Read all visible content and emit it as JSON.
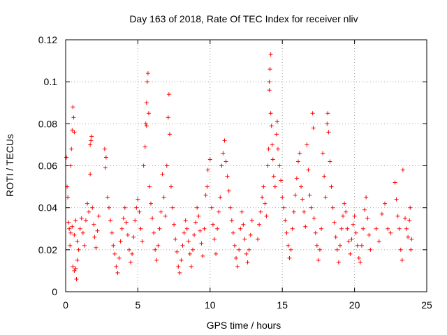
{
  "chart_data": {
    "type": "scatter",
    "title": "Day 163 of 2018, Rate Of TEC Index for receiver nliv",
    "xlabel": "GPS time / hours",
    "ylabel": "ROTI / TECUs",
    "xlim": [
      0,
      25
    ],
    "ylim": [
      0,
      0.12
    ],
    "xticks": [
      0,
      5,
      10,
      15,
      20,
      25
    ],
    "xtick_labels": [
      "0",
      "5",
      "10",
      "15",
      "20",
      "25"
    ],
    "yticks": [
      0,
      0.02,
      0.04,
      0.06,
      0.08,
      0.1,
      0.12
    ],
    "ytick_labels": [
      "0",
      "0.02",
      "0.04",
      "0.06",
      "0.08",
      "0.1",
      "0.12"
    ],
    "grid": true,
    "marker": "plus",
    "color": "#ff0000",
    "series": [
      {
        "name": "ROTI",
        "points": [
          [
            0.05,
            0.064
          ],
          [
            0.1,
            0.05
          ],
          [
            0.15,
            0.045
          ],
          [
            0.2,
            0.033
          ],
          [
            0.25,
            0.03
          ],
          [
            0.3,
            0.022
          ],
          [
            0.35,
            0.06
          ],
          [
            0.4,
            0.068
          ],
          [
            0.45,
            0.077
          ],
          [
            0.5,
            0.088
          ],
          [
            0.55,
            0.083
          ],
          [
            0.6,
            0.076
          ],
          [
            0.5,
            0.012
          ],
          [
            0.6,
            0.01
          ],
          [
            0.7,
            0.011
          ],
          [
            0.75,
            0.006
          ],
          [
            0.8,
            0.015
          ],
          [
            0.35,
            0.028
          ],
          [
            0.45,
            0.031
          ],
          [
            0.6,
            0.027
          ],
          [
            0.7,
            0.034
          ],
          [
            0.8,
            0.024
          ],
          [
            0.9,
            0.02
          ],
          [
            1.0,
            0.03
          ],
          [
            1.1,
            0.035
          ],
          [
            1.2,
            0.028
          ],
          [
            1.3,
            0.022
          ],
          [
            1.4,
            0.034
          ],
          [
            1.5,
            0.042
          ],
          [
            1.6,
            0.038
          ],
          [
            1.7,
            0.07
          ],
          [
            1.75,
            0.072
          ],
          [
            1.8,
            0.074
          ],
          [
            1.7,
            0.056
          ],
          [
            1.85,
            0.04
          ],
          [
            1.95,
            0.032
          ],
          [
            2.0,
            0.026
          ],
          [
            2.1,
            0.021
          ],
          [
            2.2,
            0.029
          ],
          [
            2.3,
            0.036
          ],
          [
            2.7,
            0.068
          ],
          [
            2.8,
            0.064
          ],
          [
            2.75,
            0.059
          ],
          [
            2.9,
            0.045
          ],
          [
            3.0,
            0.04
          ],
          [
            3.1,
            0.034
          ],
          [
            3.2,
            0.028
          ],
          [
            3.3,
            0.022
          ],
          [
            3.4,
            0.018
          ],
          [
            3.5,
            0.012
          ],
          [
            3.6,
            0.009
          ],
          [
            3.7,
            0.016
          ],
          [
            3.8,
            0.024
          ],
          [
            3.9,
            0.03
          ],
          [
            4.0,
            0.035
          ],
          [
            4.1,
            0.04
          ],
          [
            4.2,
            0.033
          ],
          [
            4.3,
            0.027
          ],
          [
            4.4,
            0.02
          ],
          [
            4.5,
            0.014
          ],
          [
            4.6,
            0.018
          ],
          [
            4.7,
            0.026
          ],
          [
            4.8,
            0.034
          ],
          [
            4.9,
            0.04
          ],
          [
            5.0,
            0.044
          ],
          [
            5.1,
            0.038
          ],
          [
            5.2,
            0.03
          ],
          [
            5.3,
            0.024
          ],
          [
            5.4,
            0.06
          ],
          [
            5.5,
            0.069
          ],
          [
            5.55,
            0.08
          ],
          [
            5.6,
            0.09
          ],
          [
            5.65,
            0.1
          ],
          [
            5.7,
            0.104
          ],
          [
            5.6,
            0.079
          ],
          [
            5.75,
            0.085
          ],
          [
            5.8,
            0.05
          ],
          [
            5.9,
            0.042
          ],
          [
            6.0,
            0.035
          ],
          [
            6.1,
            0.028
          ],
          [
            6.2,
            0.02
          ],
          [
            6.3,
            0.015
          ],
          [
            6.4,
            0.022
          ],
          [
            6.5,
            0.03
          ],
          [
            6.6,
            0.038
          ],
          [
            6.7,
            0.056
          ],
          [
            6.8,
            0.045
          ],
          [
            6.9,
            0.036
          ],
          [
            7.0,
            0.06
          ],
          [
            7.1,
            0.083
          ],
          [
            7.15,
            0.094
          ],
          [
            7.2,
            0.075
          ],
          [
            7.3,
            0.05
          ],
          [
            7.4,
            0.04
          ],
          [
            7.5,
            0.032
          ],
          [
            7.6,
            0.025
          ],
          [
            7.7,
            0.019
          ],
          [
            7.8,
            0.012
          ],
          [
            7.9,
            0.009
          ],
          [
            8.0,
            0.015
          ],
          [
            8.1,
            0.022
          ],
          [
            8.2,
            0.028
          ],
          [
            8.3,
            0.034
          ],
          [
            8.4,
            0.03
          ],
          [
            8.5,
            0.024
          ],
          [
            8.6,
            0.018
          ],
          [
            8.7,
            0.012
          ],
          [
            8.8,
            0.02
          ],
          [
            8.9,
            0.027
          ],
          [
            9.0,
            0.033
          ],
          [
            9.1,
            0.04
          ],
          [
            9.2,
            0.036
          ],
          [
            9.3,
            0.029
          ],
          [
            9.4,
            0.023
          ],
          [
            9.5,
            0.017
          ],
          [
            9.6,
            0.03
          ],
          [
            9.7,
            0.046
          ],
          [
            9.8,
            0.05
          ],
          [
            9.85,
            0.058
          ],
          [
            10.0,
            0.063
          ],
          [
            10.1,
            0.04
          ],
          [
            10.2,
            0.032
          ],
          [
            10.3,
            0.025
          ],
          [
            10.4,
            0.018
          ],
          [
            10.5,
            0.03
          ],
          [
            10.6,
            0.038
          ],
          [
            10.7,
            0.045
          ],
          [
            10.8,
            0.06
          ],
          [
            10.9,
            0.066
          ],
          [
            11.0,
            0.072
          ],
          [
            11.1,
            0.062
          ],
          [
            11.2,
            0.055
          ],
          [
            11.3,
            0.048
          ],
          [
            11.4,
            0.04
          ],
          [
            11.5,
            0.034
          ],
          [
            11.6,
            0.028
          ],
          [
            11.7,
            0.022
          ],
          [
            11.8,
            0.016
          ],
          [
            11.9,
            0.012
          ],
          [
            12.0,
            0.02
          ],
          [
            12.1,
            0.03
          ],
          [
            12.2,
            0.038
          ],
          [
            12.3,
            0.032
          ],
          [
            12.4,
            0.025
          ],
          [
            12.5,
            0.018
          ],
          [
            12.6,
            0.014
          ],
          [
            12.7,
            0.02
          ],
          [
            12.8,
            0.027
          ],
          [
            12.9,
            0.034
          ],
          [
            13.3,
            0.025
          ],
          [
            13.4,
            0.032
          ],
          [
            13.5,
            0.038
          ],
          [
            13.6,
            0.045
          ],
          [
            13.7,
            0.05
          ],
          [
            13.8,
            0.042
          ],
          [
            13.9,
            0.036
          ],
          [
            14.0,
            0.06
          ],
          [
            14.05,
            0.068
          ],
          [
            14.1,
            0.1
          ],
          [
            14.15,
            0.106
          ],
          [
            14.2,
            0.113
          ],
          [
            14.1,
            0.096
          ],
          [
            14.2,
            0.085
          ],
          [
            14.25,
            0.079
          ],
          [
            14.3,
            0.07
          ],
          [
            14.35,
            0.063
          ],
          [
            14.4,
            0.055
          ],
          [
            14.5,
            0.05
          ],
          [
            14.6,
            0.075
          ],
          [
            14.65,
            0.081
          ],
          [
            14.7,
            0.068
          ],
          [
            14.8,
            0.06
          ],
          [
            14.9,
            0.053
          ],
          [
            15.0,
            0.045
          ],
          [
            15.1,
            0.04
          ],
          [
            15.2,
            0.034
          ],
          [
            15.3,
            0.028
          ],
          [
            15.4,
            0.022
          ],
          [
            15.5,
            0.016
          ],
          [
            15.6,
            0.02
          ],
          [
            15.7,
            0.03
          ],
          [
            15.8,
            0.038
          ],
          [
            15.9,
            0.046
          ],
          [
            16.0,
            0.054
          ],
          [
            16.1,
            0.062
          ],
          [
            16.2,
            0.066
          ],
          [
            16.3,
            0.05
          ],
          [
            16.4,
            0.044
          ],
          [
            16.5,
            0.038
          ],
          [
            16.6,
            0.031
          ],
          [
            16.7,
            0.07
          ],
          [
            16.8,
            0.058
          ],
          [
            16.9,
            0.046
          ],
          [
            17.0,
            0.04
          ],
          [
            17.1,
            0.085
          ],
          [
            17.15,
            0.078
          ],
          [
            17.2,
            0.035
          ],
          [
            17.3,
            0.028
          ],
          [
            17.4,
            0.022
          ],
          [
            17.5,
            0.015
          ],
          [
            17.6,
            0.02
          ],
          [
            17.7,
            0.03
          ],
          [
            17.8,
            0.066
          ],
          [
            17.9,
            0.055
          ],
          [
            18.0,
            0.045
          ],
          [
            18.1,
            0.08
          ],
          [
            18.15,
            0.085
          ],
          [
            18.2,
            0.076
          ],
          [
            18.3,
            0.062
          ],
          [
            18.4,
            0.05
          ],
          [
            18.5,
            0.04
          ],
          [
            18.6,
            0.033
          ],
          [
            18.7,
            0.026
          ],
          [
            18.8,
            0.02
          ],
          [
            18.9,
            0.014
          ],
          [
            19.0,
            0.022
          ],
          [
            19.1,
            0.03
          ],
          [
            19.2,
            0.036
          ],
          [
            19.3,
            0.042
          ],
          [
            19.4,
            0.038
          ],
          [
            19.5,
            0.03
          ],
          [
            19.6,
            0.024
          ],
          [
            19.7,
            0.018
          ],
          [
            19.8,
            0.025
          ],
          [
            19.9,
            0.032
          ],
          [
            20.0,
            0.036
          ],
          [
            20.1,
            0.028
          ],
          [
            20.2,
            0.022
          ],
          [
            20.3,
            0.016
          ],
          [
            20.4,
            0.014
          ],
          [
            20.5,
            0.022
          ],
          [
            20.6,
            0.03
          ],
          [
            20.7,
            0.039
          ],
          [
            20.8,
            0.045
          ],
          [
            20.9,
            0.035
          ],
          [
            21.0,
            0.027
          ],
          [
            21.1,
            0.02
          ],
          [
            21.5,
            0.03
          ],
          [
            21.7,
            0.024
          ],
          [
            21.9,
            0.037
          ],
          [
            22.1,
            0.042
          ],
          [
            22.3,
            0.03
          ],
          [
            22.5,
            0.028
          ],
          [
            22.8,
            0.052
          ],
          [
            22.9,
            0.044
          ],
          [
            23.0,
            0.036
          ],
          [
            23.1,
            0.03
          ],
          [
            23.2,
            0.02
          ],
          [
            23.3,
            0.015
          ],
          [
            23.35,
            0.058
          ],
          [
            23.5,
            0.035
          ],
          [
            23.6,
            0.03
          ],
          [
            23.7,
            0.026
          ],
          [
            23.8,
            0.034
          ],
          [
            23.85,
            0.04
          ],
          [
            23.9,
            0.02
          ],
          [
            23.95,
            0.025
          ]
        ]
      }
    ]
  }
}
